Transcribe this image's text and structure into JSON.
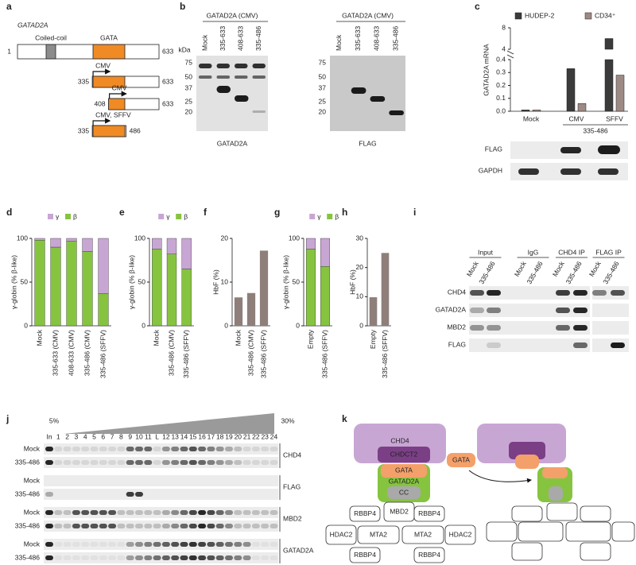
{
  "a": {
    "label": "a",
    "title": "GATAD2A",
    "domains": [
      "Coiled-coil",
      "GATA"
    ],
    "start": 1,
    "end": 633,
    "constructs": [
      {
        "promoter": "CMV",
        "start": 335,
        "end": 633
      },
      {
        "promoter": "CMV",
        "start": 408,
        "end": 633
      },
      {
        "promoter": "CMV, SFFV",
        "start": 335,
        "end": 486
      }
    ]
  },
  "b": {
    "label": "b",
    "kda": "kDa",
    "blots": [
      {
        "header": "GATAD2A (CMV)",
        "lanes": [
          "Mock",
          "335-633",
          "408-633",
          "335-486"
        ],
        "markers": [
          75,
          50,
          37,
          25,
          20
        ],
        "name": "GATAD2A"
      },
      {
        "header": "GATAD2A (CMV)",
        "lanes": [
          "Mock",
          "335-633",
          "408-633",
          "335-486"
        ],
        "markers": [
          75,
          50,
          37,
          25,
          20
        ],
        "name": "FLAG"
      }
    ]
  },
  "c": {
    "label": "c",
    "ylabel": "GATAD2A mRNA",
    "categories": [
      "Mock",
      "CMV",
      "SFFV"
    ],
    "group_label": "335-486",
    "yticks": [
      {
        "value": 0,
        "label": "0.0"
      },
      {
        "value": 0.1,
        "label": "0.1"
      },
      {
        "value": 0.2,
        "label": "0.2"
      },
      {
        "value": 0.3,
        "label": "0.3"
      },
      {
        "value": 0.4,
        "label": "0.4"
      },
      4,
      8
    ],
    "ylim_lower": [
      0,
      0.4
    ],
    "ylim_upper": [
      4,
      8
    ],
    "series": [
      {
        "name": "HUDEP-2",
        "color": "#3b3b3b",
        "values": [
          0.01,
          0.33,
          6.0
        ]
      },
      {
        "name": "CD34⁺",
        "color": "#9e8a85",
        "values": [
          0.01,
          0.06,
          0.28
        ]
      }
    ],
    "blot_rows": [
      "FLAG",
      "GAPDH"
    ]
  },
  "d": {
    "label": "d",
    "ylabel": "γ-globin (% β-like)",
    "ylim": [
      0,
      100
    ],
    "yticks": [
      0,
      50,
      100
    ],
    "categories": [
      "Mock",
      "335-633 (CMV)",
      "408-633 (CMV)",
      "335-486 (CMV)",
      "335-486 (SFFV)"
    ],
    "series": [
      {
        "name": "γ",
        "color": "#c8a6d4",
        "values": [
          2,
          10,
          3,
          15,
          63
        ]
      },
      {
        "name": "β",
        "color": "#86c440",
        "values": [
          98,
          90,
          97,
          85,
          37
        ]
      }
    ]
  },
  "e": {
    "label": "e",
    "ylabel": "γ-globin (% β-like)",
    "ylim": [
      0,
      100
    ],
    "yticks": [
      0,
      50,
      100
    ],
    "categories": [
      "Mock",
      "335-486 (CMV)",
      "335-486 (SFFV)"
    ],
    "series": [
      {
        "name": "γ",
        "color": "#c8a6d4",
        "values": [
          12,
          18,
          35
        ]
      },
      {
        "name": "β",
        "color": "#86c440",
        "values": [
          88,
          82,
          65
        ]
      }
    ]
  },
  "f": {
    "label": "f",
    "ylabel": "HbF (%)",
    "ylim": [
      0,
      20
    ],
    "yticks": [
      0,
      10,
      20
    ],
    "color": "#8e7f7b",
    "categories": [
      "Mock",
      "335-486 (CMV)",
      "335-486 (SFFV)"
    ],
    "values": [
      6.5,
      7.5,
      17.2
    ]
  },
  "g": {
    "label": "g",
    "ylabel": "γ-globin (% β-like)",
    "ylim": [
      0,
      100
    ],
    "yticks": [
      0,
      50,
      100
    ],
    "categories": [
      "Empty",
      "335-486 (SFFV)"
    ],
    "series": [
      {
        "name": "γ",
        "color": "#c8a6d4",
        "values": [
          12,
          32
        ]
      },
      {
        "name": "β",
        "color": "#86c440",
        "values": [
          88,
          68
        ]
      }
    ]
  },
  "h": {
    "label": "h",
    "ylabel": "HbF (%)",
    "ylim": [
      0,
      30
    ],
    "yticks": [
      0,
      10,
      20,
      30
    ],
    "color": "#8e7f7b",
    "categories": [
      "Empty",
      "335-486 (SFFV)"
    ],
    "values": [
      9.8,
      25
    ]
  },
  "i": {
    "label": "i",
    "groups": [
      {
        "name": "Input",
        "lanes": [
          "Mock",
          "335-486"
        ]
      },
      {
        "name": "IgG",
        "lanes": [
          "Mock",
          "335-486"
        ]
      },
      {
        "name": "CHD4 IP",
        "lanes": [
          "Mock",
          "335-486"
        ]
      },
      {
        "name": "FLAG IP",
        "lanes": [
          "Mock",
          "335-486"
        ]
      }
    ],
    "rows": [
      "CHD4",
      "GATAD2A",
      "MBD2",
      "FLAG"
    ]
  },
  "j": {
    "label": "j",
    "gradient": [
      "5%",
      "30%"
    ],
    "fractions": [
      "In",
      "1",
      "2",
      "3",
      "4",
      "5",
      "6",
      "7",
      "8",
      "9",
      "10",
      "11",
      "L",
      "12",
      "13",
      "14",
      "15",
      "16",
      "17",
      "18",
      "19",
      "20",
      "21",
      "22",
      "23",
      "24"
    ],
    "rows": [
      {
        "protein": "CHD4",
        "samples": [
          "Mock",
          "335-486"
        ]
      },
      {
        "protein": "FLAG",
        "samples": [
          "Mock",
          "335-486"
        ]
      },
      {
        "protein": "MBD2",
        "samples": [
          "Mock",
          "335-486"
        ]
      },
      {
        "protein": "GATAD2A",
        "samples": [
          "Mock",
          "335-486"
        ]
      }
    ]
  },
  "k": {
    "label": "k",
    "chd4": "CHD4",
    "chdct2": "CHDCT2",
    "gata": "GATA",
    "gatad2a": "GATAD2A",
    "cc": "CC",
    "mbd2": "MBD2",
    "rbbp4": [
      "RBBP4",
      "RBBP4",
      "RBBP4",
      "RBBP4"
    ],
    "hdac2": [
      "HDAC2",
      "HDAC2"
    ],
    "mta2": [
      "MTA2",
      "MTA2"
    ],
    "free_gata": "GATA"
  }
}
